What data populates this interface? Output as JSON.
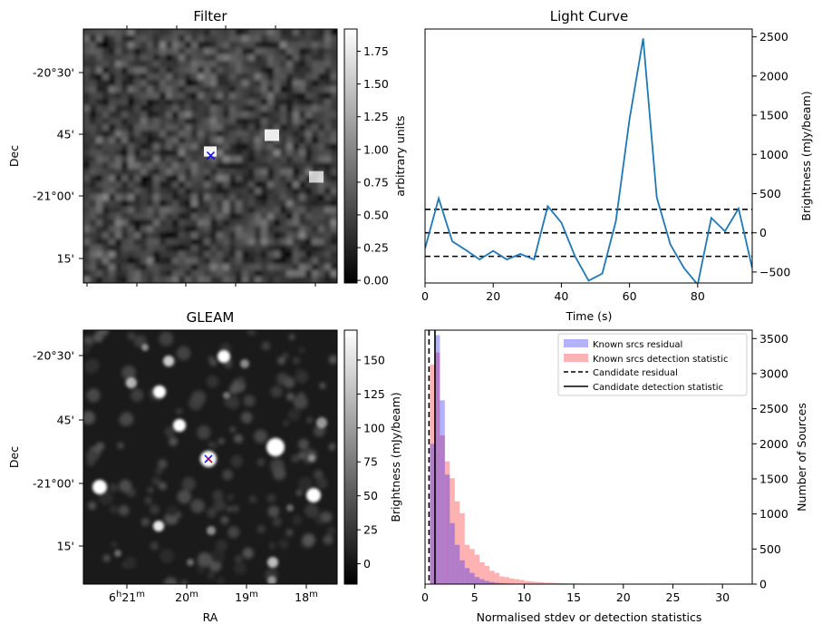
{
  "chart_data": [
    {
      "type": "heatmap",
      "title": "Filter",
      "xlabel": "",
      "ylabel": "Dec",
      "y_ticks": [
        "-20°30'",
        "45'",
        "-21°00'",
        "15'"
      ],
      "colorbar": {
        "label": "arbitrary units",
        "range": [
          -0.02,
          1.92
        ],
        "ticks": [
          "0.00",
          "0.25",
          "0.50",
          "0.75",
          "1.00",
          "1.25",
          "1.50",
          "1.75"
        ],
        "colormap": "gray"
      },
      "marker": "x",
      "marker_colors": [
        "#0000ff",
        "#ff0000"
      ]
    },
    {
      "type": "line",
      "title": "Light Curve",
      "xlabel": "Time (s)",
      "ylabel": "Brightness (mJy/beam)",
      "xlim": [
        0,
        96
      ],
      "ylim": [
        -640,
        2600
      ],
      "x_ticks": [
        0,
        20,
        40,
        60,
        80
      ],
      "y_ticks": [
        -500,
        0,
        500,
        1000,
        1500,
        2000,
        2500
      ],
      "y_axis_side": "right",
      "series": [
        {
          "color": "#1f77b4",
          "x": [
            0,
            4,
            8,
            12,
            16,
            20,
            24,
            28,
            32,
            36,
            40,
            44,
            48,
            52,
            56,
            60,
            64,
            68,
            72,
            76,
            80,
            84,
            88,
            92,
            96
          ],
          "values": [
            -200,
            440,
            -110,
            -220,
            -340,
            -230,
            -340,
            -270,
            -340,
            340,
            130,
            -300,
            -610,
            -520,
            150,
            1450,
            2480,
            450,
            -150,
            -450,
            -660,
            190,
            20,
            310,
            -450
          ]
        }
      ],
      "hlines": [
        {
          "y": 300,
          "style": "dashed",
          "color": "#000000"
        },
        {
          "y": 0,
          "style": "dashed",
          "color": "#000000"
        },
        {
          "y": -300,
          "style": "dashed",
          "color": "#000000"
        }
      ]
    },
    {
      "type": "heatmap",
      "title": "GLEAM",
      "xlabel": "RA",
      "ylabel": "Dec",
      "x_ticks": [
        "6h21m",
        "20m",
        "19m",
        "18m"
      ],
      "y_ticks": [
        "-20°30'",
        "45'",
        "-21°00'",
        "15'"
      ],
      "colorbar": {
        "label": "Brightness (mJy/beam)",
        "range": [
          -15,
          172
        ],
        "ticks": [
          "0",
          "25",
          "50",
          "75",
          "100",
          "125",
          "150"
        ],
        "colormap": "gray"
      },
      "marker": "x",
      "marker_colors": [
        "#0000ff",
        "#ff0000"
      ]
    },
    {
      "type": "bar",
      "xlabel": "Normalised stdev or detection statistics",
      "ylabel": "Number of Sources",
      "xlim": [
        0,
        33
      ],
      "ylim": [
        0,
        3620
      ],
      "x_ticks": [
        0,
        5,
        10,
        15,
        20,
        25,
        30
      ],
      "y_ticks": [
        0,
        500,
        1000,
        1500,
        2000,
        2500,
        3000,
        3500
      ],
      "y_axis_side": "right",
      "bin_width": 0.5,
      "series": [
        {
          "name": "Known srcs residual",
          "color": "#0000ff",
          "alpha": 0.3,
          "bin_start": 0.0,
          "values": [
            0,
            2000,
            3550,
            2620,
            1560,
            870,
            560,
            340,
            230,
            160,
            100,
            70,
            45,
            30,
            20,
            14,
            10,
            7,
            5,
            3,
            2,
            1
          ]
        },
        {
          "name": "Known srcs detection statistic",
          "color": "#ff0000",
          "alpha": 0.3,
          "bin_start": 0.5,
          "values": [
            3130,
            3300,
            2120,
            1750,
            1510,
            1180,
            1010,
            560,
            500,
            420,
            310,
            260,
            190,
            160,
            110,
            100,
            80,
            70,
            60,
            45,
            40,
            32,
            28,
            22,
            20,
            16,
            14,
            12,
            10,
            9,
            8,
            7,
            6,
            5,
            5,
            4,
            4,
            3,
            3,
            3,
            2,
            2,
            2,
            2,
            1,
            1,
            1,
            1,
            1,
            1,
            1,
            1,
            1,
            1,
            1,
            1,
            1,
            1,
            1,
            1,
            1,
            1
          ]
        }
      ],
      "vlines": [
        {
          "name": "Candidate residual",
          "x": 0.4,
          "style": "dashed",
          "color": "#000000"
        },
        {
          "name": "Candidate detection statistic",
          "x": 1.0,
          "style": "solid",
          "color": "#000000"
        }
      ],
      "legend_placement": "top-right"
    }
  ]
}
